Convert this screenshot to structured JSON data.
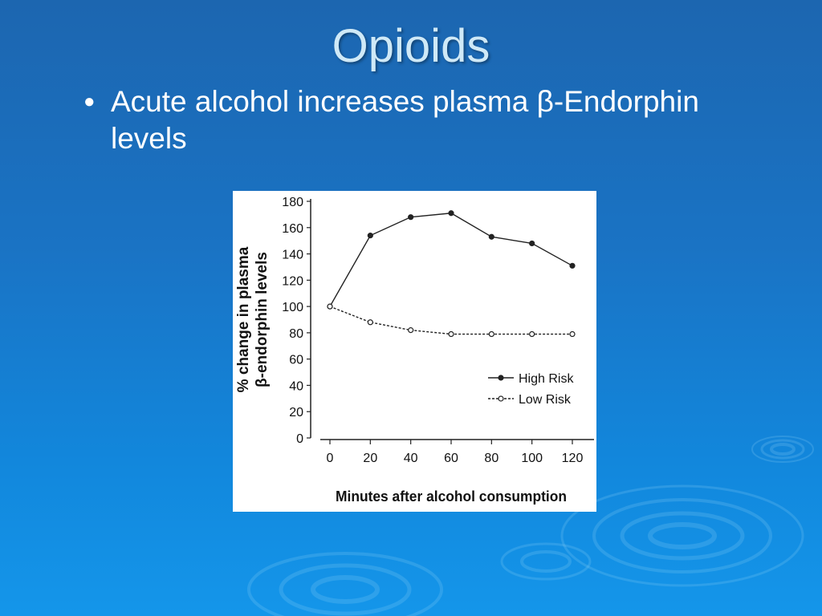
{
  "slide": {
    "title": "Opioids",
    "bullet_text": "Acute alcohol increases plasma β-Endorphin levels"
  },
  "colors": {
    "background_top": "#1c66b0",
    "background_bottom": "#1496ea",
    "title": "#cfe9f7",
    "text": "#ffffff"
  },
  "chart_data": {
    "type": "line",
    "xlabel": "Minutes after alcohol consumption",
    "ylabel_line1": "% change in plasma",
    "ylabel_line2": "β-endorphin levels",
    "x": [
      0,
      20,
      40,
      60,
      80,
      100,
      120
    ],
    "xticks": [
      "0",
      "20",
      "40",
      "60",
      "80",
      "100",
      "120"
    ],
    "yticks": [
      "0",
      "20",
      "40",
      "60",
      "80",
      "100",
      "120",
      "140",
      "160",
      "180"
    ],
    "ylim": [
      0,
      180
    ],
    "xlim": [
      0,
      120
    ],
    "legend_position": "lower-right",
    "grid": false,
    "series": [
      {
        "name": "High Risk",
        "style": "solid",
        "marker": "filled",
        "values": [
          100,
          154,
          168,
          171,
          153,
          148,
          131
        ]
      },
      {
        "name": "Low Risk",
        "style": "dotted",
        "marker": "hollow",
        "values": [
          100,
          88,
          82,
          79,
          79,
          79,
          79
        ]
      }
    ]
  }
}
